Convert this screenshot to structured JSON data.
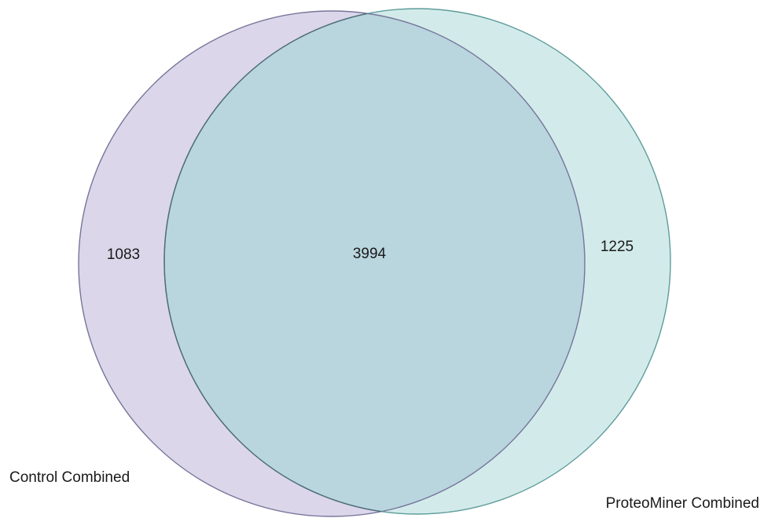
{
  "diagram": {
    "type": "venn",
    "sets": [
      {
        "id": "left",
        "label": "Control Combined",
        "only_count": "1083",
        "fill": "#dcd6ea",
        "stroke": "#76759a"
      },
      {
        "id": "right",
        "label": "ProteoMiner Combined",
        "only_count": "1225",
        "fill": "#d2ebea",
        "stroke": "#5e9c9b"
      }
    ],
    "intersection": {
      "count": "3994",
      "fill": "#b9d5de",
      "stroke": "#4f6b79"
    }
  }
}
